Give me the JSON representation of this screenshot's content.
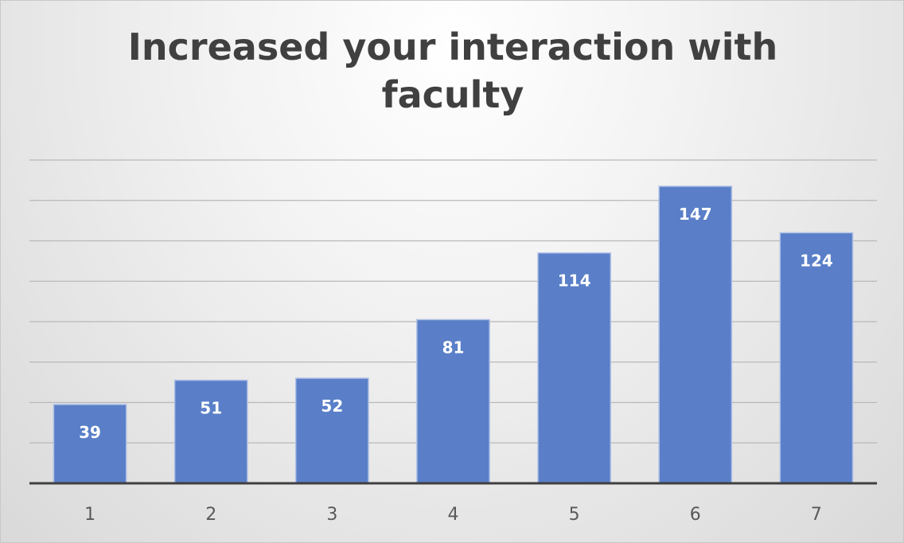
{
  "chart_data": {
    "type": "bar",
    "title_lines": [
      "Increased your interaction with",
      "faculty"
    ],
    "categories": [
      "1",
      "2",
      "3",
      "4",
      "5",
      "6",
      "7"
    ],
    "values": [
      39,
      51,
      52,
      81,
      114,
      147,
      124
    ],
    "data_labels": [
      "39",
      "51",
      "52",
      "81",
      "114",
      "147",
      "124"
    ],
    "ylim": [
      0,
      160
    ],
    "gridline_step": 20,
    "grid": true,
    "y_tick_labels_shown": false,
    "legend": "none",
    "bar_color": "#5a7fc8",
    "bar_edge_color": "#aebfe6",
    "label_color": "#ffffff",
    "tick_label_color": "#595959",
    "grid_color": "#b8b8b8",
    "axis_color": "#404040"
  }
}
